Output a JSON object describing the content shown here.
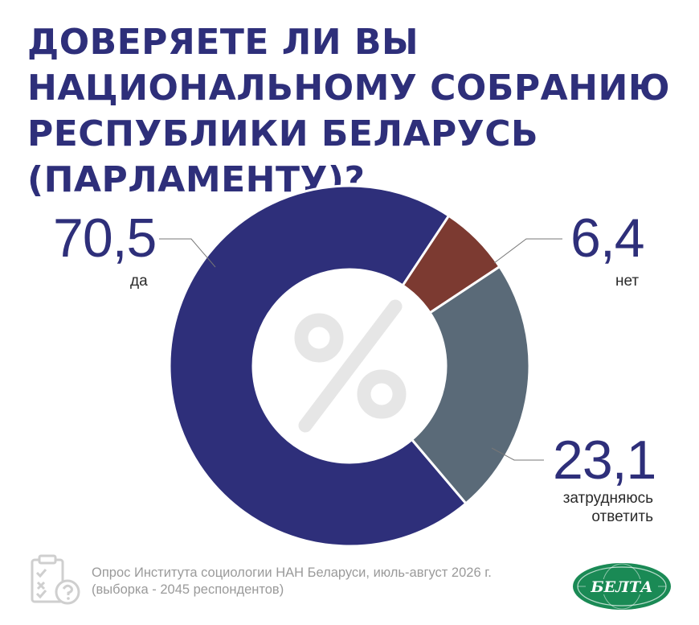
{
  "title_lines": [
    "ДОВЕРЯЕТЕ ЛИ ВЫ",
    "НАЦИОНАЛЬНОМУ СОБРАНИЮ",
    "РЕСПУБЛИКИ БЕЛАРУСЬ",
    "(ПАРЛАМЕНТУ)?"
  ],
  "chart_data": {
    "type": "pie",
    "style": "donut",
    "center_symbol": "%",
    "slices": [
      {
        "label": "да",
        "value": 70.5,
        "value_text": "70,5",
        "color": "#2e2f7a"
      },
      {
        "label": "нет",
        "value": 6.4,
        "value_text": "6,4",
        "color": "#7c3a31"
      },
      {
        "label": "затрудняюсь ответить",
        "value": 23.1,
        "value_text": "23,1",
        "color": "#5a6a78"
      }
    ]
  },
  "labels": {
    "da": {
      "value": "70,5",
      "text": "да"
    },
    "net": {
      "value": "6,4",
      "text": "нет"
    },
    "zatr": {
      "value": "23,1",
      "line1": "затрудняюсь",
      "line2": "ответить"
    }
  },
  "footer": {
    "line1": "Опрос Института социологии НАН Беларуси, июль-август 2026 г.",
    "line2": "(выборка - 2045 респондентов)"
  },
  "logo": {
    "text": "БЕЛТА",
    "color": "#1a8a55"
  },
  "icons": {
    "survey": "clipboard-question-icon"
  }
}
